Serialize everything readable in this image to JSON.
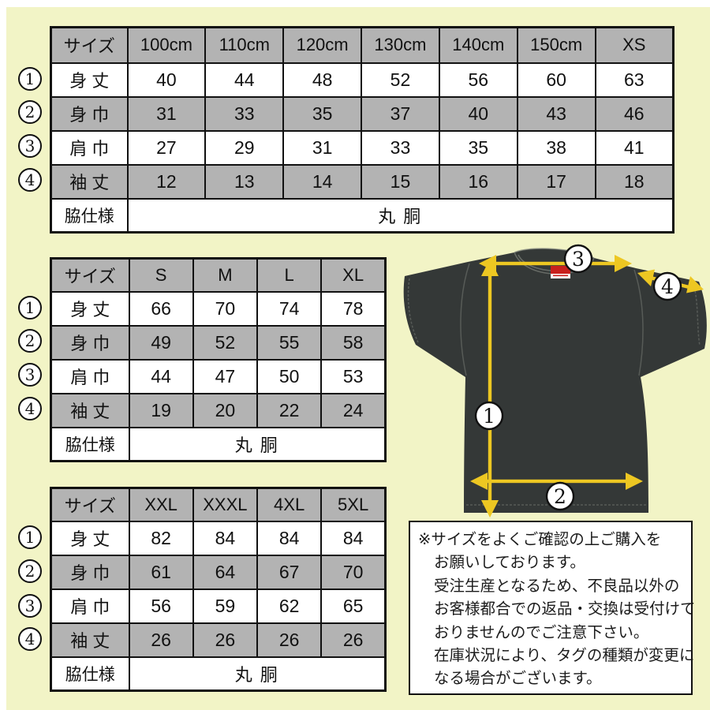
{
  "panel_bg": "#f2f4c6",
  "size_header": "サイズ",
  "markers": [
    "1",
    "2",
    "3",
    "4"
  ],
  "tables": [
    {
      "name": "kids-size-table",
      "columns": [
        "100cm",
        "110cm",
        "120cm",
        "130cm",
        "140cm",
        "150cm",
        "XS"
      ],
      "rows": [
        {
          "label": "身 丈",
          "values": [
            "40",
            "44",
            "48",
            "52",
            "56",
            "60",
            "63"
          ]
        },
        {
          "label": "身 巾",
          "values": [
            "31",
            "33",
            "35",
            "37",
            "40",
            "43",
            "46"
          ]
        },
        {
          "label": "肩 巾",
          "values": [
            "27",
            "29",
            "31",
            "33",
            "35",
            "38",
            "41"
          ]
        },
        {
          "label": "袖 丈",
          "values": [
            "12",
            "13",
            "14",
            "15",
            "16",
            "17",
            "18"
          ]
        }
      ],
      "footer": {
        "label": "脇仕様",
        "value": "丸 胴"
      }
    },
    {
      "name": "adult-size-table",
      "columns": [
        "S",
        "M",
        "L",
        "XL"
      ],
      "rows": [
        {
          "label": "身 丈",
          "values": [
            "66",
            "70",
            "74",
            "78"
          ]
        },
        {
          "label": "身 巾",
          "values": [
            "49",
            "52",
            "55",
            "58"
          ]
        },
        {
          "label": "肩 巾",
          "values": [
            "44",
            "47",
            "50",
            "53"
          ]
        },
        {
          "label": "袖 丈",
          "values": [
            "19",
            "20",
            "22",
            "24"
          ]
        }
      ],
      "footer": {
        "label": "脇仕様",
        "value": "丸 胴"
      }
    },
    {
      "name": "plus-size-table",
      "columns": [
        "XXL",
        "XXXL",
        "4XL",
        "5XL"
      ],
      "rows": [
        {
          "label": "身 丈",
          "values": [
            "82",
            "84",
            "84",
            "84"
          ]
        },
        {
          "label": "身 巾",
          "values": [
            "61",
            "64",
            "67",
            "70"
          ]
        },
        {
          "label": "肩 巾",
          "values": [
            "56",
            "59",
            "62",
            "65"
          ]
        },
        {
          "label": "袖 丈",
          "values": [
            "26",
            "26",
            "26",
            "26"
          ]
        }
      ],
      "footer": {
        "label": "脇仕様",
        "value": "丸 胴"
      }
    }
  ],
  "diagram": {
    "markers": [
      "1",
      "2",
      "3",
      "4"
    ],
    "shirt_color": "#343837",
    "arrow_color": "#edc722",
    "tag_color": "#c8201d"
  },
  "notice": {
    "lines": [
      "※サイズをよくご確認の上ご購入を",
      "お願いしております。",
      "受注生産となるため、不良品以外の",
      "お客様都合での返品・交換は受付けて",
      "おりませんのでご注意下さい。",
      "在庫状況により、タグの種類が変更に",
      "なる場合がございます。"
    ]
  }
}
